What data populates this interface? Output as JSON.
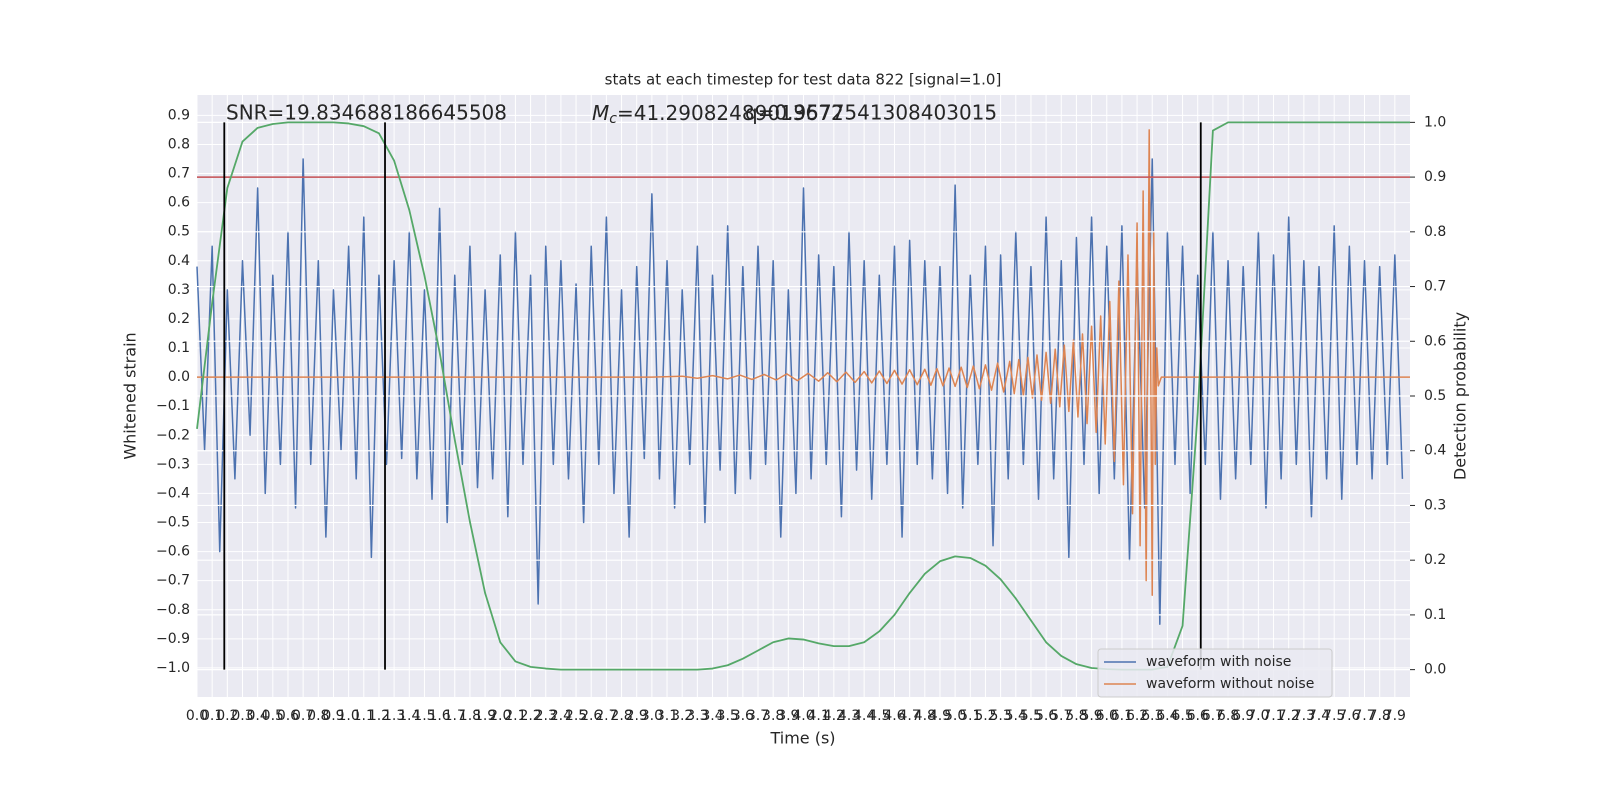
{
  "chart_data": {
    "type": "line",
    "title": "stats at each timestep for test data 822 [signal=1.0]",
    "xlabel": "Time (s)",
    "ylabel": "Whitened strain",
    "y2label": "Detection probability",
    "grid": true,
    "legend": "lower right",
    "xlim": [
      0,
      8
    ],
    "ylim": [
      -1.1,
      0.97
    ],
    "y2lim": [
      -0.05,
      1.05
    ],
    "xticks": [
      {
        "value": 0,
        "label": "0.0"
      },
      0.1,
      0.2,
      0.3,
      0.4,
      0.5,
      0.6,
      0.7,
      0.8,
      0.9,
      {
        "value": 1,
        "label": "1.0"
      },
      1.1,
      1.2,
      1.3,
      1.4,
      1.5,
      1.6,
      1.7,
      1.8,
      1.9,
      {
        "value": 2,
        "label": "2.0"
      },
      2.1,
      2.2,
      2.3,
      2.4,
      2.5,
      2.6,
      2.7,
      2.8,
      2.9,
      {
        "value": 3,
        "label": "3.0"
      },
      3.1,
      3.2,
      3.3,
      3.4,
      3.5,
      3.6,
      3.7,
      3.8,
      3.9,
      {
        "value": 4,
        "label": "4.0"
      },
      4.1,
      4.2,
      4.3,
      4.4,
      4.5,
      4.6,
      4.7,
      4.8,
      4.9,
      {
        "value": 5,
        "label": "5.0"
      },
      5.1,
      5.2,
      5.3,
      5.4,
      5.5,
      5.6,
      5.7,
      5.8,
      5.9,
      {
        "value": 6,
        "label": "6.0"
      },
      6.1,
      6.2,
      6.3,
      6.4,
      6.5,
      6.6,
      6.7,
      6.8,
      6.9,
      {
        "value": 7,
        "label": "7.0"
      },
      7.1,
      7.2,
      7.3,
      7.4,
      7.5,
      7.6,
      7.7,
      7.8,
      7.9
    ],
    "yticks": [
      {
        "value": -1,
        "label": "−1.0"
      },
      {
        "value": -0.9,
        "label": "−0.9"
      },
      {
        "value": -0.8,
        "label": "−0.8"
      },
      {
        "value": -0.7,
        "label": "−0.7"
      },
      {
        "value": -0.6,
        "label": "−0.6"
      },
      {
        "value": -0.5,
        "label": "−0.5"
      },
      {
        "value": -0.4,
        "label": "−0.4"
      },
      {
        "value": -0.3,
        "label": "−0.3"
      },
      {
        "value": -0.2,
        "label": "−0.2"
      },
      {
        "value": -0.1,
        "label": "−0.1"
      },
      {
        "value": 0,
        "label": "0.0"
      },
      0.1,
      0.2,
      0.3,
      0.4,
      0.5,
      0.6,
      0.7,
      0.8,
      0.9
    ],
    "y2ticks": [
      {
        "value": 0,
        "label": "0.0"
      },
      0.1,
      0.2,
      0.3,
      0.4,
      0.5,
      0.6,
      0.7,
      0.8,
      0.9,
      {
        "value": 1,
        "label": "1.0"
      }
    ],
    "series": [
      {
        "name": "waveform with noise",
        "color": "#4c72b0",
        "x": [
          0,
          0.05,
          0.1,
          0.15,
          0.2,
          0.25,
          0.3,
          0.35,
          0.4,
          0.45,
          0.5,
          0.55,
          0.6,
          0.65,
          0.7,
          0.75,
          0.8,
          0.85,
          0.9,
          0.95,
          1,
          1.05,
          1.1,
          1.15,
          1.2,
          1.25,
          1.3,
          1.35,
          1.4,
          1.45,
          1.5,
          1.55,
          1.6,
          1.65,
          1.7,
          1.75,
          1.8,
          1.85,
          1.9,
          1.95,
          2,
          2.05,
          2.1,
          2.15,
          2.2,
          2.25,
          2.3,
          2.35,
          2.4,
          2.45,
          2.5,
          2.55,
          2.6,
          2.65,
          2.7,
          2.75,
          2.8,
          2.85,
          2.9,
          2.95,
          3,
          3.05,
          3.1,
          3.15,
          3.2,
          3.25,
          3.3,
          3.35,
          3.4,
          3.45,
          3.5,
          3.55,
          3.6,
          3.65,
          3.7,
          3.75,
          3.8,
          3.85,
          3.9,
          3.95,
          4,
          4.05,
          4.1,
          4.15,
          4.2,
          4.25,
          4.3,
          4.35,
          4.4,
          4.45,
          4.5,
          4.55,
          4.6,
          4.65,
          4.7,
          4.75,
          4.8,
          4.85,
          4.9,
          4.95,
          5,
          5.05,
          5.1,
          5.15,
          5.2,
          5.25,
          5.3,
          5.35,
          5.4,
          5.45,
          5.5,
          5.55,
          5.6,
          5.65,
          5.7,
          5.75,
          5.8,
          5.85,
          5.9,
          5.95,
          6,
          6.05,
          6.1,
          6.15,
          6.2,
          6.25,
          6.3,
          6.35,
          6.4,
          6.45,
          6.5,
          6.55,
          6.6,
          6.65,
          6.7,
          6.75,
          6.8,
          6.85,
          6.9,
          6.95,
          7,
          7.05,
          7.1,
          7.15,
          7.2,
          7.25,
          7.3,
          7.35,
          7.4,
          7.45,
          7.5,
          7.55,
          7.6,
          7.65,
          7.7,
          7.75,
          7.8,
          7.85,
          7.9,
          7.95
        ],
        "values": [
          0.38,
          -0.25,
          0.45,
          -0.6,
          0.3,
          -0.35,
          0.4,
          -0.2,
          0.65,
          -0.4,
          0.35,
          -0.3,
          0.5,
          -0.45,
          0.75,
          -0.3,
          0.4,
          -0.55,
          0.3,
          -0.25,
          0.45,
          -0.35,
          0.55,
          -0.62,
          0.35,
          -0.3,
          0.4,
          -0.28,
          0.5,
          -0.35,
          0.3,
          -0.42,
          0.58,
          -0.5,
          0.35,
          -0.3,
          0.45,
          -0.38,
          0.3,
          -0.35,
          0.42,
          -0.48,
          0.5,
          -0.3,
          0.35,
          -0.78,
          0.45,
          -0.3,
          0.4,
          -0.35,
          0.32,
          -0.5,
          0.45,
          -0.3,
          0.55,
          -0.4,
          0.3,
          -0.55,
          0.38,
          -0.28,
          0.63,
          -0.35,
          0.4,
          -0.45,
          0.3,
          -0.3,
          0.45,
          -0.5,
          0.35,
          -0.32,
          0.52,
          -0.4,
          0.38,
          -0.35,
          0.45,
          -0.3,
          0.4,
          -0.55,
          0.3,
          -0.4,
          0.65,
          -0.35,
          0.42,
          -0.3,
          0.38,
          -0.48,
          0.5,
          -0.32,
          0.4,
          -0.42,
          0.35,
          -0.3,
          0.45,
          -0.55,
          0.47,
          -0.3,
          0.4,
          -0.35,
          0.38,
          -0.4,
          0.66,
          -0.45,
          0.35,
          -0.3,
          0.45,
          -0.58,
          0.42,
          -0.35,
          0.5,
          -0.3,
          0.38,
          -0.42,
          0.55,
          -0.35,
          0.4,
          -0.62,
          0.48,
          -0.3,
          0.55,
          -0.4,
          0.45,
          -0.35,
          0.52,
          -0.63,
          0.4,
          -0.45,
          0.75,
          -0.85,
          0.5,
          -0.3,
          0.45,
          -0.4,
          0.35,
          -0.3,
          0.5,
          -0.42,
          0.4,
          -0.35,
          0.38,
          -0.3,
          0.5,
          -0.45,
          0.42,
          -0.35,
          0.55,
          -0.3,
          0.4,
          -0.48,
          0.38,
          -0.35,
          0.52,
          -0.42,
          0.45,
          -0.3,
          0.4,
          -0.35,
          0.38,
          -0.3,
          0.42,
          -0.35
        ]
      },
      {
        "name": "waveform without noise",
        "color": "#dd8452",
        "x": [
          0,
          3,
          3.2,
          3.3,
          3.4,
          3.5,
          3.58,
          3.66,
          3.74,
          3.82,
          3.89,
          3.96,
          4.03,
          4.1,
          4.16,
          4.22,
          4.28,
          4.34,
          4.4,
          4.45,
          4.5,
          4.55,
          4.6,
          4.65,
          4.7,
          4.75,
          4.8,
          4.84,
          4.88,
          4.92,
          4.96,
          5,
          5.04,
          5.08,
          5.12,
          5.16,
          5.2,
          5.24,
          5.28,
          5.32,
          5.36,
          5.39,
          5.42,
          5.45,
          5.48,
          5.51,
          5.54,
          5.57,
          5.6,
          5.63,
          5.66,
          5.69,
          5.72,
          5.75,
          5.78,
          5.81,
          5.84,
          5.87,
          5.9,
          5.93,
          5.96,
          5.99,
          6.02,
          6.05,
          6.08,
          6.11,
          6.14,
          6.17,
          6.2,
          6.22,
          6.24,
          6.26,
          6.28,
          6.3,
          6.31,
          6.32,
          6.33,
          6.34,
          6.36,
          8
        ],
        "values": [
          0,
          0,
          0.003,
          -0.004,
          0.005,
          -0.006,
          0.007,
          -0.008,
          0.009,
          -0.01,
          0.011,
          -0.012,
          0.013,
          -0.014,
          0.015,
          -0.016,
          0.017,
          -0.018,
          0.019,
          -0.02,
          0.021,
          -0.022,
          0.023,
          -0.024,
          0.025,
          -0.026,
          0.027,
          -0.028,
          0.029,
          -0.03,
          0.031,
          -0.032,
          0.034,
          -0.036,
          0.038,
          -0.04,
          0.042,
          -0.045,
          0.048,
          -0.051,
          0.054,
          -0.057,
          0.06,
          -0.064,
          0.068,
          -0.072,
          0.076,
          -0.08,
          0.085,
          -0.09,
          0.096,
          -0.102,
          0.11,
          -0.118,
          0.127,
          -0.137,
          0.148,
          -0.16,
          0.175,
          -0.19,
          0.21,
          -0.23,
          0.26,
          -0.29,
          0.33,
          -0.37,
          0.42,
          -0.47,
          0.53,
          -0.58,
          0.64,
          -0.7,
          0.85,
          -0.75,
          0.5,
          -0.3,
          0.1,
          -0.03,
          0,
          0
        ]
      },
      {
        "color": "#55a868",
        "axis": "y2",
        "x": [
          0,
          0.1,
          0.2,
          0.3,
          0.4,
          0.5,
          0.6,
          0.7,
          0.8,
          0.9,
          1,
          1.1,
          1.2,
          1.3,
          1.4,
          1.5,
          1.6,
          1.7,
          1.8,
          1.9,
          2,
          2.1,
          2.2,
          2.3,
          2.4,
          2.5,
          2.6,
          2.7,
          2.8,
          2.9,
          3,
          3.1,
          3.2,
          3.3,
          3.4,
          3.5,
          3.6,
          3.7,
          3.8,
          3.9,
          4,
          4.1,
          4.2,
          4.3,
          4.4,
          4.5,
          4.6,
          4.7,
          4.8,
          4.9,
          5,
          5.1,
          5.2,
          5.3,
          5.4,
          5.5,
          5.6,
          5.7,
          5.8,
          5.9,
          6,
          6.1,
          6.2,
          6.3,
          6.4,
          6.5,
          6.6,
          6.7,
          6.8,
          6.9,
          7,
          7.1,
          7.2,
          7.3,
          7.4,
          7.5,
          7.6,
          7.7,
          7.8,
          7.9,
          8
        ],
        "values": [
          0.44,
          0.67,
          0.88,
          0.965,
          0.99,
          0.997,
          1,
          1,
          1,
          1,
          0.998,
          0.993,
          0.98,
          0.93,
          0.84,
          0.72,
          0.58,
          0.42,
          0.27,
          0.14,
          0.05,
          0.015,
          0.005,
          0.002,
          0,
          0,
          0,
          0,
          0,
          0,
          0,
          0,
          0,
          0,
          0.002,
          0.008,
          0.02,
          0.035,
          0.05,
          0.057,
          0.055,
          0.048,
          0.043,
          0.043,
          0.05,
          0.07,
          0.1,
          0.14,
          0.175,
          0.198,
          0.207,
          0.204,
          0.19,
          0.165,
          0.13,
          0.09,
          0.05,
          0.025,
          0.01,
          0.003,
          0.001,
          0,
          0,
          0,
          0.005,
          0.08,
          0.47,
          0.985,
          1,
          1,
          1,
          1,
          1,
          1,
          1,
          1,
          1,
          1,
          1,
          1,
          1
        ]
      }
    ],
    "hlines": [
      {
        "value": 0.9,
        "axis": "y2",
        "color": "#c44e52"
      }
    ],
    "vlines": {
      "x": [
        0.18,
        1.24,
        6.62
      ],
      "ymin": 0,
      "ymax": 1,
      "axis": "y2",
      "color": "#000000"
    },
    "annotations": [
      "SNR=19.834688186645508",
      {
        "symbol": "M",
        "subscript": "c",
        "text": "=41.29082489013672"
      },
      "q=0.9577541308403015"
    ]
  }
}
